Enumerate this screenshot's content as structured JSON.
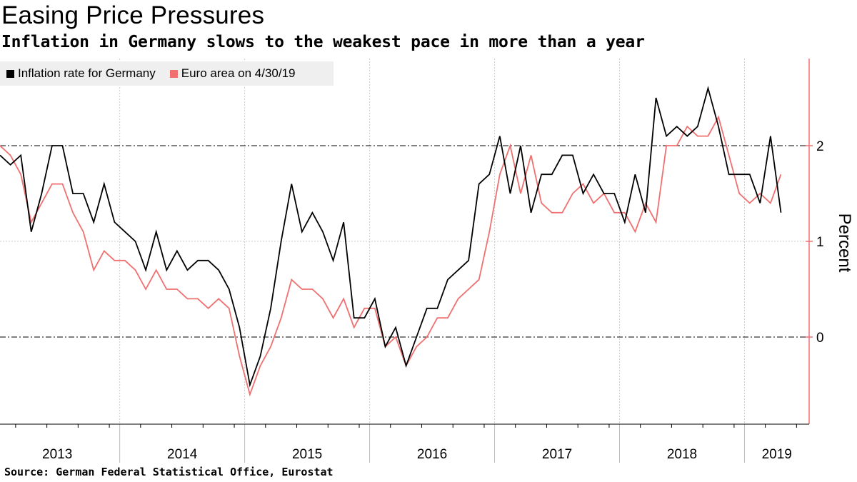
{
  "title": "Easing Price Pressures",
  "subtitle": "Inflation in Germany slows to the weakest pace in more than a year",
  "source": "Source: German Federal Statistical Office, Eurostat",
  "colors": {
    "germany": "#000000",
    "euro": "#f07070",
    "axis": "#f07070",
    "grid": "#cccccc"
  },
  "chart_data": {
    "type": "line",
    "title": "Easing Price Pressures",
    "ylabel": "Percent",
    "xlabel": "",
    "ylim": [
      -0.9,
      2.9
    ],
    "yticks": [
      0,
      1,
      2
    ],
    "reference_lines": [
      0,
      2
    ],
    "grid": true,
    "legend_position": "top-left",
    "x_start": "2013-01",
    "year_labels": [
      "2013",
      "2014",
      "2015",
      "2016",
      "2017",
      "2018",
      "2019"
    ],
    "series": [
      {
        "name": "Inflation rate for Germany",
        "color": "#000000",
        "values": [
          1.9,
          1.8,
          1.9,
          1.1,
          1.5,
          2.0,
          2.0,
          1.5,
          1.5,
          1.2,
          1.6,
          1.2,
          1.1,
          1.0,
          0.7,
          1.1,
          0.7,
          0.9,
          0.7,
          0.8,
          0.8,
          0.7,
          0.5,
          0.1,
          -0.5,
          -0.2,
          0.3,
          1.0,
          1.6,
          1.1,
          1.3,
          1.1,
          0.8,
          1.2,
          0.2,
          0.2,
          0.4,
          -0.1,
          0.1,
          -0.3,
          0.0,
          0.3,
          0.3,
          0.6,
          0.7,
          0.8,
          1.6,
          1.7,
          2.1,
          1.5,
          2.0,
          1.3,
          1.7,
          1.7,
          1.9,
          1.9,
          1.5,
          1.7,
          1.5,
          1.5,
          1.2,
          1.7,
          1.3,
          2.5,
          2.1,
          2.2,
          2.1,
          2.2,
          2.6,
          2.2,
          1.7,
          1.7,
          1.7,
          1.4,
          2.1,
          1.3
        ]
      },
      {
        "name": "Euro area on 4/30/19",
        "color": "#f07070",
        "values": [
          2.0,
          1.9,
          1.7,
          1.2,
          1.4,
          1.6,
          1.6,
          1.3,
          1.1,
          0.7,
          0.9,
          0.8,
          0.8,
          0.7,
          0.5,
          0.7,
          0.5,
          0.5,
          0.4,
          0.4,
          0.3,
          0.4,
          0.3,
          -0.2,
          -0.6,
          -0.3,
          -0.1,
          0.2,
          0.6,
          0.5,
          0.5,
          0.4,
          0.2,
          0.4,
          0.1,
          0.3,
          0.3,
          -0.1,
          0.0,
          -0.3,
          -0.1,
          0.0,
          0.2,
          0.2,
          0.4,
          0.5,
          0.6,
          1.1,
          1.7,
          2.0,
          1.5,
          1.9,
          1.4,
          1.3,
          1.3,
          1.5,
          1.6,
          1.4,
          1.5,
          1.3,
          1.3,
          1.1,
          1.4,
          1.2,
          2.0,
          2.0,
          2.2,
          2.1,
          2.1,
          2.3,
          1.9,
          1.5,
          1.4,
          1.5,
          1.4,
          1.7
        ]
      }
    ]
  }
}
